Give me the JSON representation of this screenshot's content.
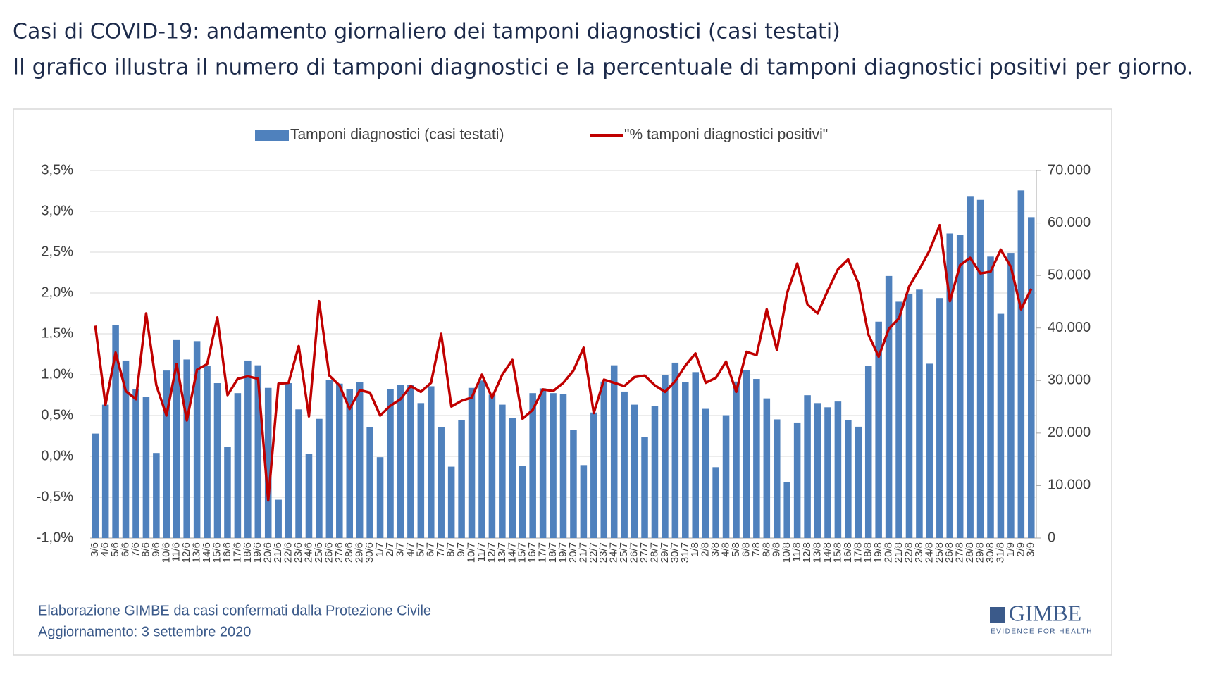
{
  "title": "Casi di COVID-19: andamento giornaliero dei tamponi diagnostici (casi testati)",
  "subtitle": "Il grafico illustra il numero di tamponi diagnostici e la percentuale di tamponi diagnostici positivi per giorno.",
  "chart_data": {
    "type": "bar-line",
    "categories": [
      "3/6",
      "4/6",
      "5/6",
      "6/6",
      "7/6",
      "8/6",
      "9/6",
      "10/6",
      "11/6",
      "12/6",
      "13/6",
      "14/6",
      "15/6",
      "16/6",
      "17/6",
      "18/6",
      "19/6",
      "20/6",
      "21/6",
      "22/6",
      "23/6",
      "24/6",
      "25/6",
      "26/6",
      "27/6",
      "28/6",
      "29/6",
      "30/6",
      "1/7",
      "2/7",
      "3/7",
      "4/7",
      "5/7",
      "6/7",
      "7/7",
      "8/7",
      "9/7",
      "10/7",
      "11/7",
      "12/7",
      "13/7",
      "14/7",
      "15/7",
      "16/7",
      "17/7",
      "18/7",
      "19/7",
      "20/7",
      "21/7",
      "22/7",
      "23/7",
      "24/7",
      "25/7",
      "26/7",
      "27/7",
      "28/7",
      "29/7",
      "30/7",
      "31/7",
      "1/8",
      "2/8",
      "3/8",
      "4/8",
      "5/8",
      "6/8",
      "7/8",
      "8/8",
      "9/8",
      "10/8",
      "11/8",
      "12/8",
      "13/8",
      "14/8",
      "15/8",
      "16/8",
      "17/8",
      "18/8",
      "19/8",
      "20/8",
      "21/8",
      "22/8",
      "23/8",
      "24/8",
      "25/8",
      "26/8",
      "27/8",
      "28/8",
      "29/8",
      "30/8",
      "31/8",
      "1/9",
      "2/9",
      "3/9"
    ],
    "series": [
      {
        "name": "Tamponi diagnostici (casi testati)",
        "kind": "bar",
        "axis": "y2",
        "color": "#4f81bd",
        "values": [
          19900,
          25400,
          40500,
          33800,
          28300,
          26900,
          16200,
          31900,
          37700,
          34000,
          37500,
          32800,
          29500,
          17400,
          27600,
          33800,
          32900,
          28600,
          7300,
          29500,
          24500,
          16000,
          22700,
          30100,
          29400,
          28300,
          29700,
          21100,
          15400,
          28300,
          29200,
          29100,
          25700,
          28900,
          21100,
          13600,
          22400,
          28600,
          30000,
          27300,
          25400,
          22800,
          13800,
          27600,
          28500,
          27600,
          27400,
          20600,
          13900,
          23900,
          29800,
          32900,
          27900,
          25400,
          19300,
          25200,
          31000,
          33400,
          29700,
          31600,
          24600,
          13500,
          23400,
          29800,
          32000,
          30300,
          26600,
          22600,
          10700,
          22000,
          27200,
          25700,
          24900,
          26000,
          22400,
          21200,
          32800,
          41200,
          49900,
          45000,
          46400,
          47300,
          33200,
          45700,
          58000,
          57700,
          65000,
          64400,
          53600,
          42700,
          54300,
          66200,
          61100
        ]
      },
      {
        "name": "\"% tamponi diagnostici positivi\"",
        "kind": "line",
        "axis": "y",
        "color": "#c00000",
        "values": [
          1.6,
          0.63,
          1.27,
          0.8,
          0.7,
          1.75,
          0.87,
          0.5,
          1.13,
          0.44,
          1.06,
          1.13,
          1.7,
          0.75,
          0.95,
          0.98,
          0.95,
          -0.54,
          0.89,
          0.9,
          1.35,
          0.49,
          1.9,
          0.99,
          0.87,
          0.58,
          0.81,
          0.78,
          0.5,
          0.62,
          0.7,
          0.86,
          0.79,
          0.9,
          1.5,
          0.61,
          0.68,
          0.72,
          1.0,
          0.72,
          1.0,
          1.18,
          0.46,
          0.57,
          0.82,
          0.8,
          0.9,
          1.05,
          1.33,
          0.53,
          0.94,
          0.9,
          0.86,
          0.97,
          0.99,
          0.87,
          0.79,
          0.92,
          1.11,
          1.26,
          0.9,
          0.96,
          1.16,
          0.79,
          1.28,
          1.24,
          1.8,
          1.3,
          2.0,
          2.36,
          1.86,
          1.75,
          2.03,
          2.29,
          2.41,
          2.12,
          1.49,
          1.22,
          1.56,
          1.69,
          2.08,
          2.29,
          2.52,
          2.83,
          1.9,
          2.34,
          2.43,
          2.24,
          2.26,
          2.53,
          2.32,
          1.8,
          2.05
        ]
      }
    ],
    "ylim": [
      -1.0,
      3.5
    ],
    "yticks": [
      {
        "value": -1.0,
        "label": "-1,0%"
      },
      {
        "value": -0.5,
        "label": "-0,5%"
      },
      {
        "value": 0,
        "label": "0,0%"
      },
      {
        "value": 0.5,
        "label": "0,5%"
      },
      {
        "value": 1.0,
        "label": "1,0%"
      },
      {
        "value": 1.5,
        "label": "1,5%"
      },
      {
        "value": 2.0,
        "label": "2,0%"
      },
      {
        "value": 2.5,
        "label": "2,5%"
      },
      {
        "value": 3.0,
        "label": "3,0%"
      },
      {
        "value": 3.5,
        "label": "3,5%"
      }
    ],
    "y2lim": [
      0,
      70000
    ],
    "y2ticks": [
      0,
      {
        "value": 10000,
        "label": "10.000"
      },
      {
        "value": 20000,
        "label": "20.000"
      },
      {
        "value": 30000,
        "label": "30.000"
      },
      {
        "value": 40000,
        "label": "40.000"
      },
      {
        "value": 50000,
        "label": "50.000"
      },
      {
        "value": 60000,
        "label": "60.000"
      },
      {
        "value": 70000,
        "label": "70.000"
      }
    ],
    "grid": true,
    "legend": "top"
  },
  "footer": {
    "source": "Elaborazione GIMBE da casi confermati dalla Protezione Civile",
    "update": "Aggiornamento: 3 settembre 2020"
  },
  "logo": {
    "name": "GIMBE",
    "tagline": "EVIDENCE FOR HEALTH"
  }
}
